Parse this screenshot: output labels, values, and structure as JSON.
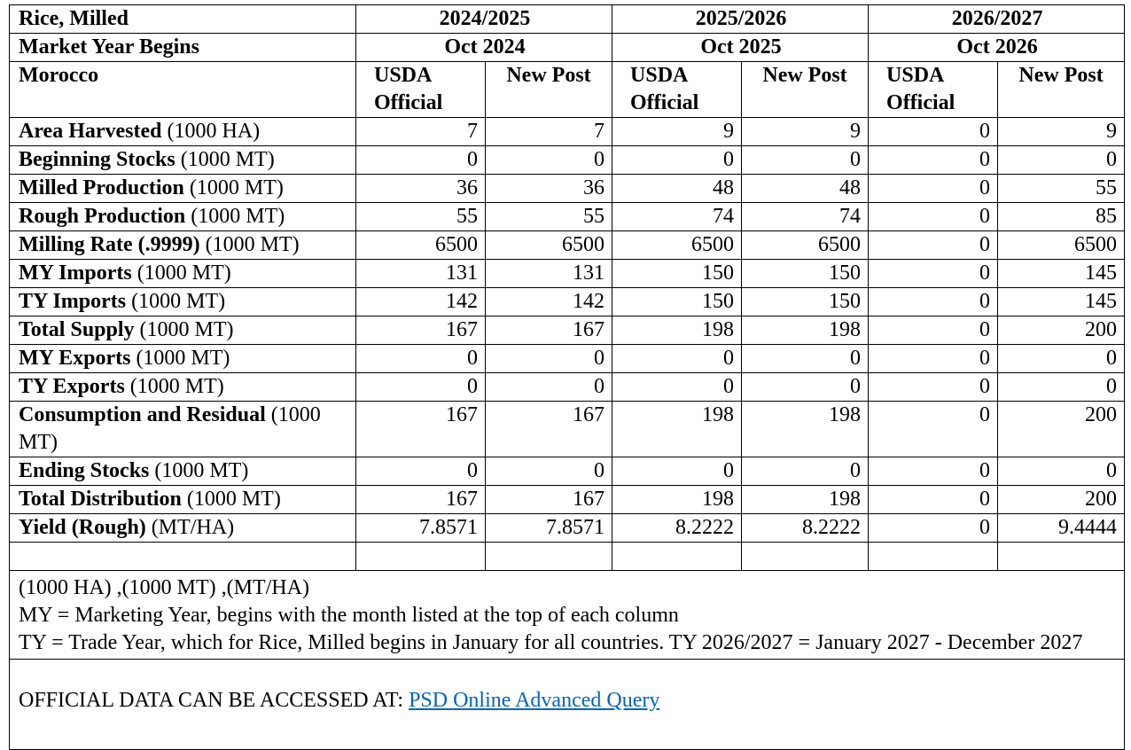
{
  "table": {
    "header": {
      "commodity": "Rice, Milled",
      "years": [
        "2024/2025",
        "2025/2026",
        "2026/2027"
      ],
      "market_year_label": "Market Year Begins",
      "market_year_starts": [
        "Oct 2024",
        "Oct 2025",
        "Oct 2026"
      ],
      "country": "Morocco",
      "columns": [
        "USDA Official",
        "New Post",
        "USDA Official",
        "New Post",
        "USDA Official",
        "New Post"
      ]
    },
    "rows": [
      {
        "label": "Area Harvested",
        "unit": "(1000 HA)",
        "values": [
          7,
          7,
          9,
          9,
          0,
          9
        ]
      },
      {
        "label": "Beginning Stocks",
        "unit": "(1000 MT)",
        "values": [
          0,
          0,
          0,
          0,
          0,
          0
        ]
      },
      {
        "label": "Milled Production",
        "unit": "(1000 MT)",
        "values": [
          36,
          36,
          48,
          48,
          0,
          55
        ]
      },
      {
        "label": "Rough Production",
        "unit": "(1000 MT)",
        "values": [
          55,
          55,
          74,
          74,
          0,
          85
        ]
      },
      {
        "label": "Milling Rate (.9999)",
        "unit": "(1000 MT)",
        "values": [
          6500,
          6500,
          6500,
          6500,
          0,
          6500
        ]
      },
      {
        "label": "MY Imports",
        "unit": "(1000 MT)",
        "values": [
          131,
          131,
          150,
          150,
          0,
          145
        ]
      },
      {
        "label": "TY Imports",
        "unit": "(1000 MT)",
        "values": [
          142,
          142,
          150,
          150,
          0,
          145
        ]
      },
      {
        "label": "Total Supply",
        "unit": "(1000 MT)",
        "values": [
          167,
          167,
          198,
          198,
          0,
          200
        ]
      },
      {
        "label": "MY Exports",
        "unit": "(1000 MT)",
        "values": [
          0,
          0,
          0,
          0,
          0,
          0
        ]
      },
      {
        "label": "TY Exports",
        "unit": "(1000 MT)",
        "values": [
          0,
          0,
          0,
          0,
          0,
          0
        ]
      },
      {
        "label": "Consumption and Residual",
        "unit": "(1000 MT)",
        "values": [
          167,
          167,
          198,
          198,
          0,
          200
        ]
      },
      {
        "label": "Ending Stocks",
        "unit": "(1000 MT)",
        "values": [
          0,
          0,
          0,
          0,
          0,
          0
        ]
      },
      {
        "label": "Total Distribution",
        "unit": "(1000 MT)",
        "values": [
          167,
          167,
          198,
          198,
          0,
          200
        ]
      },
      {
        "label": "Yield (Rough)",
        "unit": "(MT/HA)",
        "values": [
          7.8571,
          7.8571,
          8.2222,
          8.2222,
          0,
          9.4444
        ]
      }
    ],
    "notes": [
      "(1000 HA) ,(1000 MT) ,(MT/HA)",
      "MY = Marketing Year, begins with the month listed at the top of each column",
      "TY = Trade Year, which for Rice, Milled begins in January for all countries. TY 2026/2027 = January 2027 - December 2027"
    ],
    "footer": {
      "text": "OFFICIAL DATA CAN BE ACCESSED AT:",
      "link": "PSD Online Advanced Query"
    }
  }
}
